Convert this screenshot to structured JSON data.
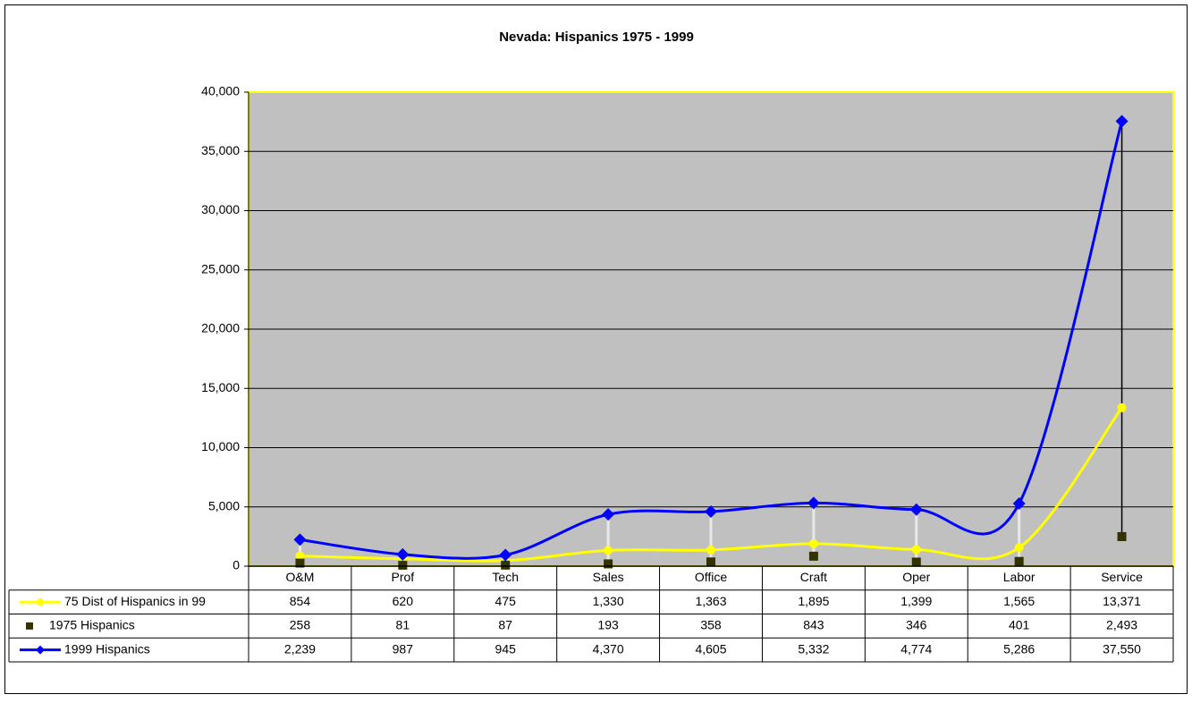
{
  "chart_data": {
    "type": "line",
    "title": "Nevada: Hispanics 1975 - 1999",
    "categories": [
      "O&M",
      "Prof",
      "Tech",
      "Sales",
      "Office",
      "Craft",
      "Oper",
      "Labor",
      "Service"
    ],
    "series": [
      {
        "name": "75 Dist of Hispanics in 99",
        "color": "#ffff00",
        "marker": "circle",
        "line": true,
        "values": [
          854,
          620,
          475,
          1330,
          1363,
          1895,
          1399,
          1565,
          13371
        ],
        "value_labels": [
          "854",
          "620",
          "475",
          "1,330",
          "1,363",
          "1,895",
          "1,399",
          "1,565",
          "13,371"
        ]
      },
      {
        "name": "1975 Hispanics",
        "color": "#333300",
        "marker": "square",
        "line": false,
        "values": [
          258,
          81,
          87,
          193,
          358,
          843,
          346,
          401,
          2493
        ],
        "value_labels": [
          "258",
          "81",
          "87",
          "193",
          "358",
          "843",
          "346",
          "401",
          "2,493"
        ]
      },
      {
        "name": "1999 Hispanics",
        "color": "#0000ff",
        "marker": "diamond",
        "line": true,
        "values": [
          2239,
          987,
          945,
          4370,
          4605,
          5332,
          4774,
          5286,
          37550
        ],
        "value_labels": [
          "2,239",
          "987",
          "945",
          "4,370",
          "4,605",
          "5,332",
          "4,774",
          "5,286",
          "37,550"
        ]
      }
    ],
    "ylim": [
      0,
      40000
    ],
    "yticks": [
      0,
      {
        "value": 5000,
        "label": "5,000"
      },
      {
        "value": 10000,
        "label": "10,000"
      },
      {
        "value": 15000,
        "label": "15,000"
      },
      {
        "value": 20000,
        "label": "20,000"
      },
      {
        "value": 25000,
        "label": "25,000"
      },
      {
        "value": 30000,
        "label": "30,000"
      },
      {
        "value": 35000,
        "label": "35,000"
      },
      {
        "value": 40000,
        "label": "40,000"
      }
    ],
    "grid": true,
    "smooth": true,
    "high_low_lines": true,
    "plot_background": "#c0c0c0",
    "plot_border": "#ffff00"
  }
}
